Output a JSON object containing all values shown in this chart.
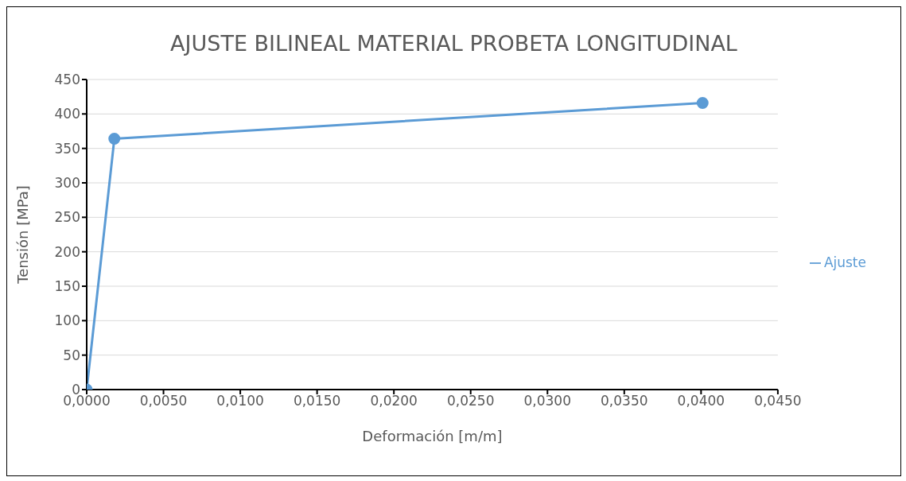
{
  "chart_data": {
    "type": "line",
    "title": "AJUSTE BILINEAL MATERIAL PROBETA LONGITUDINAL",
    "xlabel": "Deformación [m/m]",
    "ylabel": "Tensión [MPa]",
    "x": [
      0,
      0.0018,
      0.0401
    ],
    "series": [
      {
        "name": "Ajuste",
        "color": "#5b9bd5",
        "values": [
          0,
          364,
          416
        ]
      }
    ],
    "xlim": [
      0,
      0.045
    ],
    "xticks": [
      {
        "value": 0,
        "label": "0,0000"
      },
      {
        "value": 0.005,
        "label": "0,0050"
      },
      {
        "value": 0.01,
        "label": "0,0100"
      },
      {
        "value": 0.015,
        "label": "0,0150"
      },
      {
        "value": 0.02,
        "label": "0,0200"
      },
      {
        "value": 0.025,
        "label": "0,0250"
      },
      {
        "value": 0.03,
        "label": "0,0300"
      },
      {
        "value": 0.035,
        "label": "0,0350"
      },
      {
        "value": 0.04,
        "label": "0,0400"
      },
      {
        "value": 0.045,
        "label": "0,0450"
      }
    ],
    "ylim": [
      0,
      450
    ],
    "yticks": [
      0,
      50,
      100,
      150,
      200,
      250,
      300,
      350,
      400,
      450
    ],
    "grid": "y",
    "legend": "right",
    "marker": "circle",
    "line_style": "solid"
  }
}
